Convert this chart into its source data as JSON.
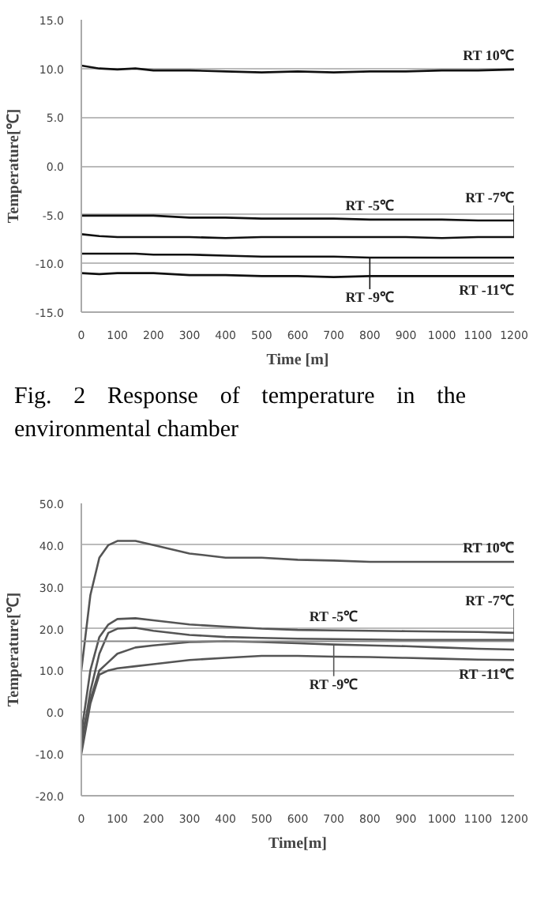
{
  "chart_data": [
    {
      "type": "line",
      "xlabel": "Time [m]",
      "ylabel": "Temperature[℃]",
      "annotations": [
        "Fig. 2 Response of temperature in the environmental chamber"
      ],
      "xlim": [
        0,
        1200
      ],
      "xticks": [
        0,
        100,
        200,
        300,
        400,
        500,
        600,
        700,
        800,
        900,
        1000,
        1100,
        1200
      ],
      "ylim": [
        -15,
        15
      ],
      "yticks": [
        {
          "value": -15,
          "label": "-15.0"
        },
        {
          "value": -10,
          "label": "-10.0"
        },
        {
          "value": -5,
          "label": "-5.0"
        },
        {
          "value": 0,
          "label": "0.0"
        },
        {
          "value": 5,
          "label": "5.0"
        },
        {
          "value": 10,
          "label": "10.0"
        },
        {
          "value": 15,
          "label": "15.0"
        }
      ],
      "grid": "y",
      "marker": "none",
      "line_style": "solid",
      "x": [
        0,
        50,
        100,
        150,
        200,
        300,
        400,
        500,
        600,
        700,
        800,
        900,
        1000,
        1100,
        1200
      ],
      "series": [
        {
          "name": "RT 10℃",
          "color": "#111111",
          "values": [
            10.3,
            10,
            9.9,
            10,
            9.8,
            9.8,
            9.7,
            9.6,
            9.7,
            9.6,
            9.7,
            9.7,
            9.8,
            9.8,
            9.9
          ]
        },
        {
          "name": "RT -5℃",
          "color": "#111111",
          "values": [
            -5.1,
            -5.1,
            -5.1,
            -5.1,
            -5.1,
            -5.3,
            -5.3,
            -5.4,
            -5.4,
            -5.4,
            -5.5,
            -5.5,
            -5.5,
            -5.6,
            -5.6
          ]
        },
        {
          "name": "RT -7℃",
          "color": "#111111",
          "values": [
            -7,
            -7.2,
            -7.3,
            -7.3,
            -7.3,
            -7.3,
            -7.4,
            -7.3,
            -7.3,
            -7.3,
            -7.3,
            -7.3,
            -7.4,
            -7.3,
            -7.3
          ]
        },
        {
          "name": "RT -9℃",
          "color": "#111111",
          "values": [
            -9,
            -9,
            -9,
            -9,
            -9.1,
            -9.1,
            -9.2,
            -9.3,
            -9.3,
            -9.3,
            -9.4,
            -9.4,
            -9.4,
            -9.4,
            -9.4
          ]
        },
        {
          "name": "RT -11℃",
          "color": "#111111",
          "values": [
            -11,
            -11.1,
            -11,
            -11,
            -11,
            -11.2,
            -11.2,
            -11.3,
            -11.3,
            -11.4,
            -11.3,
            -11.3,
            -11.3,
            -11.3,
            -11.3
          ]
        }
      ]
    },
    {
      "type": "line",
      "xlabel": "Time[m]",
      "ylabel": "Temperature[℃]",
      "xlim": [
        0,
        1200
      ],
      "xticks": [
        0,
        100,
        200,
        300,
        400,
        500,
        600,
        700,
        800,
        900,
        1000,
        1100,
        1200
      ],
      "ylim": [
        -20,
        50
      ],
      "yticks": [
        {
          "value": -20,
          "label": "-20.0"
        },
        {
          "value": -10,
          "label": "-10.0"
        },
        {
          "value": 0,
          "label": "0.0"
        },
        {
          "value": 10,
          "label": "10.0"
        },
        {
          "value": 20,
          "label": "20.0"
        },
        {
          "value": 30,
          "label": "30.0"
        },
        {
          "value": 40,
          "label": "40.0"
        },
        {
          "value": 50,
          "label": "50.0"
        }
      ],
      "grid": "y",
      "marker": "none",
      "line_style": "solid",
      "ref_lines": [
        {
          "axis": "y",
          "value": 17
        }
      ],
      "x": [
        0,
        25,
        50,
        75,
        100,
        150,
        200,
        300,
        400,
        500,
        600,
        700,
        800,
        900,
        1000,
        1100,
        1200
      ],
      "series": [
        {
          "name": "RT 10℃",
          "color": "#555555",
          "values": [
            10,
            28,
            37,
            40,
            41,
            41,
            40,
            38,
            37,
            37,
            36.5,
            36.3,
            36,
            36,
            36,
            36,
            36
          ]
        },
        {
          "name": "RT -5℃",
          "color": "#555555",
          "values": [
            -5,
            10,
            18,
            21,
            22.3,
            22.5,
            22,
            21,
            20.5,
            20,
            19.7,
            19.6,
            19.5,
            19.4,
            19.3,
            19.2,
            19
          ]
        },
        {
          "name": "RT -7℃",
          "color": "#555555",
          "values": [
            -8,
            5,
            14,
            19,
            20,
            20.2,
            19.5,
            18.5,
            18,
            17.8,
            17.6,
            17.5,
            17.4,
            17.3,
            17.3,
            17.3,
            17.3
          ]
        },
        {
          "name": "RT -9℃",
          "color": "#555555",
          "values": [
            -6,
            3,
            10,
            12,
            14,
            15.5,
            16,
            16.8,
            17,
            16.8,
            16.5,
            16.2,
            16,
            15.8,
            15.5,
            15.2,
            15
          ]
        },
        {
          "name": "RT -11℃",
          "color": "#555555",
          "values": [
            -10,
            2,
            9,
            10,
            10.5,
            11,
            11.5,
            12.5,
            13,
            13.5,
            13.5,
            13.3,
            13.2,
            13,
            12.8,
            12.6,
            12.5
          ]
        }
      ]
    }
  ]
}
